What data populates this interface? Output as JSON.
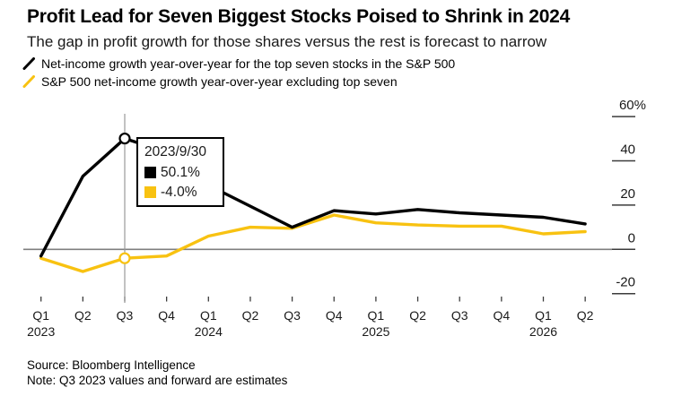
{
  "header": {
    "title": "Profit Lead for Seven Biggest Stocks Poised to Shrink in 2024",
    "subtitle": "The gap in profit growth for those shares versus the rest is forecast to narrow"
  },
  "legend": [
    {
      "label": "Net-income growth year-over-year for the top seven stocks in the S&P 500",
      "color": "#000000"
    },
    {
      "label": "S&P 500 net-income growth year-over-year excluding top seven",
      "color": "#f8c211"
    }
  ],
  "chart_data": {
    "type": "line",
    "categories": [
      "Q1 2023",
      "Q2 2023",
      "Q3 2023",
      "Q4 2023",
      "Q1 2024",
      "Q2 2024",
      "Q3 2024",
      "Q4 2024",
      "Q1 2025",
      "Q2 2025",
      "Q3 2025",
      "Q4 2025",
      "Q1 2026",
      "Q2 2026"
    ],
    "x_tick_labels": [
      "Q1",
      "Q2",
      "Q3",
      "Q4",
      "Q1",
      "Q2",
      "Q3",
      "Q4",
      "Q1",
      "Q2",
      "Q3",
      "Q4",
      "Q1",
      "Q2"
    ],
    "year_labels": [
      {
        "year": "2023",
        "at_index": 0
      },
      {
        "year": "2024",
        "at_index": 4
      },
      {
        "year": "2025",
        "at_index": 8
      },
      {
        "year": "2026",
        "at_index": 12
      }
    ],
    "series": [
      {
        "name": "Top seven stocks net-income growth YoY",
        "color": "#000000",
        "values": [
          -3,
          33,
          50.1,
          44,
          29,
          19.5,
          10,
          17.5,
          16,
          18,
          16.5,
          15.5,
          14.5,
          11.5
        ]
      },
      {
        "name": "S&P 500 net-income growth YoY excluding top seven",
        "color": "#f8c211",
        "values": [
          -4,
          -10,
          -4,
          -3,
          6,
          10,
          9.5,
          15.5,
          12,
          11,
          10.5,
          10.5,
          7,
          8
        ]
      }
    ],
    "yticks": [
      60,
      40,
      20,
      0,
      -20
    ],
    "ytick_labels": [
      "60%",
      "40",
      "20",
      "0",
      "-20"
    ],
    "ylim": [
      -25,
      63
    ],
    "grid": false,
    "legend_position": "top-left",
    "highlight": {
      "index": 2,
      "date": "2023/9/30",
      "values": [
        "50.1%",
        "-4.0%"
      ]
    }
  },
  "footer": {
    "source": "Source: Bloomberg Intelligence",
    "note": "Note: Q3 2023 values and forward are estimates"
  }
}
